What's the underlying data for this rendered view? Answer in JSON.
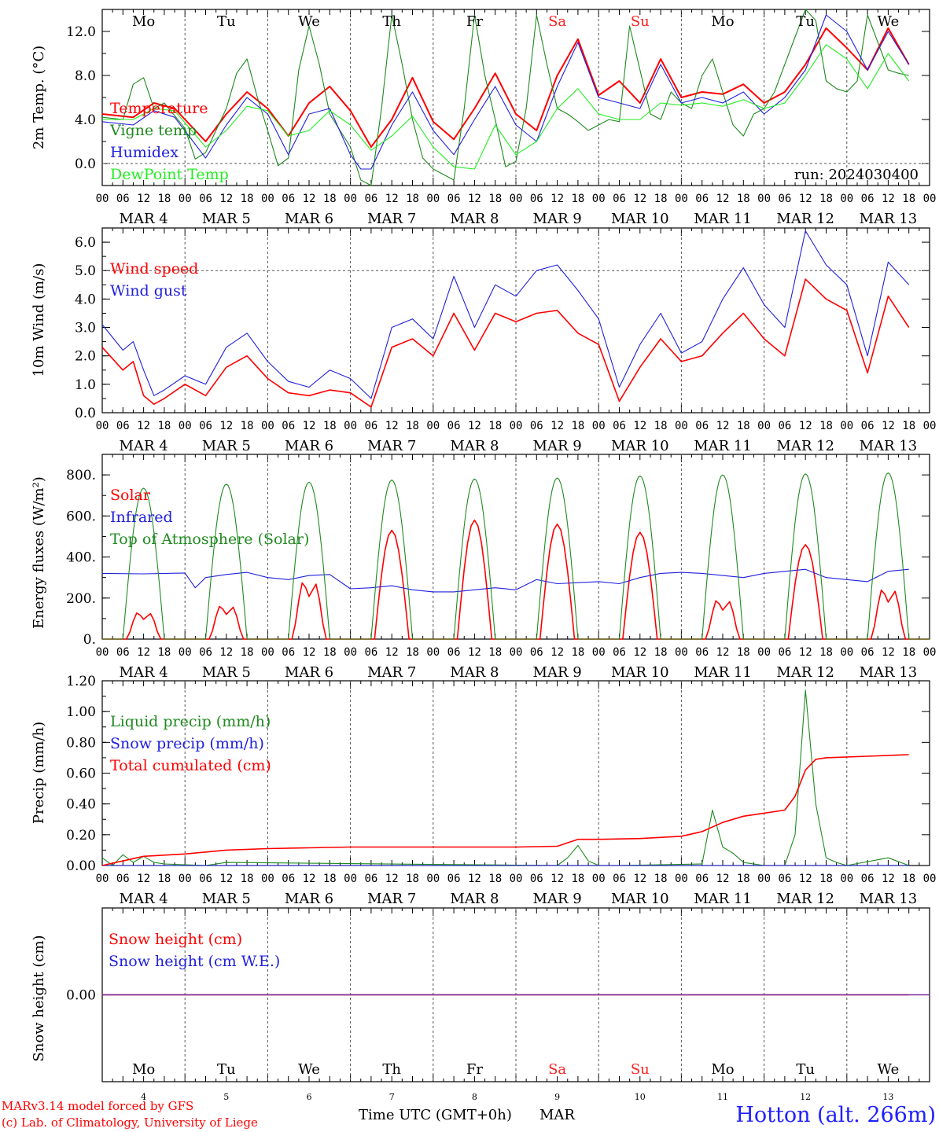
{
  "axis": {
    "hour_labels": [
      "00",
      "06",
      "12",
      "18"
    ],
    "days": [
      "Mo",
      "Tu",
      "We",
      "Th",
      "Fr",
      "Sa",
      "Su",
      "Mo",
      "Tu",
      "We"
    ],
    "weekend_color": "#ff2020",
    "dates": [
      "MAR   4",
      "MAR   5",
      "MAR   6",
      "MAR   7",
      "MAR   8",
      "MAR   9",
      "MAR  10",
      "MAR  11",
      "MAR  12",
      "MAR  13"
    ],
    "bottom_day_numbers": [
      "4",
      "5",
      "6",
      "7",
      "8",
      "9",
      "10",
      "11",
      "12",
      "13"
    ],
    "xlabel": "Time UTC (GMT+0h)",
    "month": "MAR"
  },
  "footer": {
    "credit1": "MARv3.14 model forced by GFS",
    "credit2": "(c) Lab. of Climatology, University of Liege",
    "location": "Hotton (alt. 266m)"
  },
  "chart_data": [
    {
      "type": "line",
      "ylabel": "2m Temp. (°C)",
      "ylim": [
        -2,
        14
      ],
      "yticks": [
        "0.0",
        "4.0",
        "8.0",
        "12.0"
      ],
      "run_label": "run: 2024030400",
      "series": [
        {
          "name": "Temperature",
          "color": "#ff0000",
          "x": [
            0,
            9,
            15,
            21,
            30,
            36,
            42,
            48,
            54,
            60,
            66,
            72,
            78,
            84,
            90,
            96,
            102,
            108,
            114,
            120,
            126,
            132,
            138,
            144,
            150,
            156,
            162,
            168,
            174,
            180,
            186,
            192,
            198,
            204,
            210,
            216,
            222,
            228,
            234
          ],
          "y": [
            4.5,
            4.2,
            5.5,
            5.0,
            2.0,
            4.5,
            6.5,
            5.0,
            2.5,
            5.5,
            7.0,
            4.8,
            1.5,
            4.0,
            7.8,
            3.8,
            2.2,
            5.0,
            8.2,
            4.5,
            3.0,
            8.0,
            11.3,
            6.2,
            7.5,
            5.5,
            9.5,
            6.0,
            6.5,
            6.3,
            7.2,
            5.5,
            6.5,
            9.0,
            12.3,
            10.5,
            8.5,
            12.3,
            9.0
          ]
        },
        {
          "name": "Vigne temp",
          "color": "#1f8a1f",
          "x": [
            0,
            6,
            9,
            12,
            15,
            18,
            24,
            27,
            30,
            33,
            36,
            39,
            42,
            45,
            48,
            51,
            54,
            57,
            60,
            63,
            66,
            69,
            72,
            75,
            78,
            81,
            84,
            87,
            90,
            93,
            96,
            99,
            102,
            105,
            108,
            111,
            114,
            117,
            120,
            123,
            126,
            129,
            132,
            135,
            138,
            141,
            144,
            147,
            150,
            153,
            156,
            159,
            162,
            165,
            168,
            171,
            174,
            177,
            180,
            183,
            186,
            189,
            192,
            195,
            198,
            201,
            204,
            207,
            210,
            213,
            216,
            219,
            222,
            225,
            228,
            231,
            234
          ],
          "y": [
            4.2,
            4.0,
            7.2,
            7.8,
            5.0,
            5.5,
            3.2,
            0.4,
            1.0,
            3.0,
            5.0,
            8.2,
            9.5,
            6.0,
            3.0,
            -0.2,
            0.5,
            8.5,
            12.5,
            9.0,
            4.5,
            3.0,
            1.5,
            -1.5,
            -2.0,
            5.0,
            13.5,
            9.0,
            4.0,
            0.5,
            -0.5,
            -1.0,
            -1.5,
            5.0,
            13.5,
            8.0,
            4.0,
            -0.3,
            0.2,
            5.0,
            13.5,
            9.0,
            5.0,
            4.5,
            3.8,
            3.0,
            3.5,
            4.0,
            3.8,
            12.5,
            8.5,
            4.5,
            4.0,
            6.5,
            5.5,
            5.0,
            8.0,
            9.5,
            6.5,
            3.5,
            2.5,
            4.5,
            5.0,
            6.5,
            9.0,
            11.5,
            14.0,
            13.0,
            7.5,
            6.8,
            6.5,
            7.5,
            13.5,
            11.0,
            8.5,
            8.2,
            8.0
          ]
        },
        {
          "name": "Humidex",
          "color": "#2020dd",
          "x": [
            0,
            9,
            15,
            21,
            30,
            36,
            42,
            48,
            54,
            60,
            66,
            72,
            75,
            78,
            84,
            90,
            96,
            102,
            108,
            114,
            120,
            126,
            132,
            138,
            144,
            150,
            156,
            162,
            168,
            174,
            180,
            186,
            192,
            198,
            204,
            210,
            216,
            222,
            228,
            234
          ],
          "y": [
            3.8,
            3.5,
            4.8,
            4.2,
            0.5,
            3.5,
            6.0,
            4.5,
            0.8,
            4.5,
            5.0,
            0.8,
            -0.5,
            -0.5,
            3.5,
            6.5,
            3.0,
            0.8,
            4.0,
            7.0,
            3.5,
            2.0,
            7.0,
            11.0,
            6.0,
            5.5,
            5.0,
            9.0,
            5.5,
            6.0,
            5.5,
            6.5,
            4.5,
            6.0,
            8.5,
            13.5,
            12.0,
            8.5,
            12.0,
            9.0
          ]
        },
        {
          "name": "DewPoint Temp",
          "color": "#22ee22",
          "x": [
            0,
            9,
            15,
            21,
            30,
            36,
            42,
            48,
            54,
            60,
            66,
            72,
            78,
            84,
            90,
            96,
            102,
            108,
            114,
            120,
            126,
            132,
            138,
            144,
            150,
            156,
            162,
            168,
            174,
            180,
            186,
            192,
            198,
            204,
            210,
            216,
            222,
            228,
            234
          ],
          "y": [
            4.0,
            4.0,
            5.0,
            4.8,
            1.5,
            3.0,
            5.2,
            4.8,
            2.5,
            3.0,
            4.8,
            3.5,
            1.2,
            2.5,
            4.3,
            1.5,
            -0.3,
            -0.5,
            3.5,
            0.8,
            2.0,
            5.0,
            6.8,
            4.5,
            4.0,
            4.0,
            5.5,
            5.3,
            5.5,
            5.2,
            5.8,
            5.0,
            5.5,
            8.0,
            10.8,
            9.5,
            6.8,
            10.0,
            7.5
          ]
        }
      ]
    },
    {
      "type": "line",
      "ylabel": "10m Wind (m/s)",
      "ylim": [
        0,
        6.5
      ],
      "yticks": [
        "0.0",
        "1.0",
        "2.0",
        "3.0",
        "4.0",
        "5.0",
        "6.0"
      ],
      "series": [
        {
          "name": "Wind speed",
          "color": "#ff0000",
          "x": [
            0,
            6,
            9,
            12,
            15,
            18,
            24,
            30,
            36,
            42,
            48,
            54,
            60,
            66,
            72,
            78,
            84,
            90,
            96,
            102,
            108,
            114,
            120,
            126,
            132,
            138,
            144,
            150,
            156,
            162,
            168,
            174,
            180,
            186,
            192,
            198,
            204,
            210,
            216,
            222,
            228,
            234
          ],
          "y": [
            2.3,
            1.5,
            1.8,
            0.6,
            0.3,
            0.5,
            1.0,
            0.6,
            1.6,
            2.0,
            1.2,
            0.7,
            0.6,
            0.8,
            0.7,
            0.2,
            2.3,
            2.6,
            2.0,
            3.5,
            2.2,
            3.5,
            3.2,
            3.5,
            3.6,
            2.8,
            2.4,
            0.4,
            1.6,
            2.6,
            1.8,
            2.0,
            2.8,
            3.5,
            2.6,
            2.0,
            4.7,
            4.0,
            3.6,
            1.4,
            4.1,
            3.0
          ]
        },
        {
          "name": "Wind gust",
          "color": "#2020dd",
          "x": [
            0,
            6,
            9,
            12,
            15,
            18,
            24,
            30,
            36,
            42,
            48,
            54,
            60,
            66,
            72,
            78,
            84,
            90,
            96,
            102,
            108,
            114,
            120,
            126,
            132,
            138,
            144,
            150,
            156,
            162,
            168,
            174,
            180,
            186,
            192,
            198,
            204,
            210,
            216,
            222,
            228,
            234
          ],
          "y": [
            3.1,
            2.2,
            2.5,
            1.5,
            0.6,
            0.8,
            1.3,
            1.0,
            2.3,
            2.8,
            1.8,
            1.1,
            0.9,
            1.5,
            1.2,
            0.5,
            3.0,
            3.3,
            2.6,
            4.8,
            3.0,
            4.5,
            4.1,
            5.0,
            5.2,
            4.3,
            3.3,
            0.9,
            2.4,
            3.5,
            2.1,
            2.5,
            4.0,
            5.1,
            3.8,
            3.0,
            6.4,
            5.2,
            4.5,
            2.0,
            5.3,
            4.5
          ]
        }
      ]
    },
    {
      "type": "line",
      "ylabel": "Energy fluxes (W/m²)",
      "ylim": [
        0,
        900
      ],
      "yticks": [
        "0.",
        "200.",
        "400.",
        "600.",
        "800."
      ],
      "series": [
        {
          "name": "Solar",
          "color": "#ff0000",
          "peaks_W_m2": [
            160,
            200,
            345,
            530,
            580,
            560,
            520,
            235,
            460,
            300
          ]
        },
        {
          "name": "Infrared",
          "color": "#2020dd",
          "x": [
            0,
            12,
            24,
            27,
            30,
            36,
            42,
            48,
            54,
            60,
            66,
            72,
            78,
            84,
            90,
            96,
            102,
            108,
            114,
            120,
            126,
            132,
            138,
            144,
            150,
            156,
            162,
            168,
            174,
            180,
            186,
            192,
            198,
            204,
            210,
            216,
            222,
            228,
            234
          ],
          "y": [
            320,
            318,
            322,
            250,
            300,
            315,
            325,
            300,
            290,
            310,
            315,
            245,
            250,
            260,
            240,
            230,
            230,
            240,
            250,
            240,
            290,
            270,
            275,
            280,
            270,
            300,
            320,
            325,
            320,
            310,
            300,
            320,
            330,
            340,
            300,
            290,
            280,
            330,
            340
          ]
        },
        {
          "name": "Top of Atmosphere (Solar)",
          "color": "#1f8a1f",
          "peaks_W_m2": [
            735,
            755,
            765,
            775,
            780,
            785,
            795,
            800,
            805,
            810
          ]
        }
      ]
    },
    {
      "type": "line",
      "ylabel": "Precip (mm/h)",
      "ylim": [
        0,
        1.2
      ],
      "yticks": [
        "0.00",
        "0.20",
        "0.40",
        "0.60",
        "0.80",
        "1.00",
        "1.20"
      ],
      "series": [
        {
          "name": "Liquid precip (mm/h)",
          "color": "#1f8a1f",
          "x": [
            0,
            3,
            6,
            9,
            12,
            15,
            18,
            30,
            36,
            132,
            135,
            138,
            141,
            144,
            150,
            174,
            177,
            180,
            183,
            186,
            192,
            198,
            201,
            204,
            207,
            210,
            213,
            216,
            228,
            234
          ],
          "y": [
            0.05,
            0.0,
            0.07,
            0.02,
            0.06,
            0.02,
            0.01,
            0.0,
            0.02,
            0.0,
            0.05,
            0.13,
            0.03,
            0.0,
            0.0,
            0.01,
            0.36,
            0.12,
            0.08,
            0.02,
            0.0,
            0.0,
            0.2,
            1.14,
            0.4,
            0.05,
            0.02,
            0.0,
            0.05,
            0.0
          ]
        },
        {
          "name": "Snow precip (mm/h)",
          "color": "#2020dd",
          "x": [
            0,
            234
          ],
          "y": [
            0,
            0
          ]
        },
        {
          "name": "Total cumulated (cm)",
          "color": "#ff0000",
          "x": [
            0,
            12,
            24,
            36,
            48,
            60,
            72,
            96,
            120,
            132,
            138,
            144,
            156,
            168,
            174,
            180,
            186,
            192,
            198,
            201,
            204,
            207,
            210,
            222,
            234
          ],
          "y": [
            0.0,
            0.06,
            0.075,
            0.1,
            0.11,
            0.115,
            0.12,
            0.12,
            0.12,
            0.125,
            0.17,
            0.17,
            0.175,
            0.19,
            0.22,
            0.28,
            0.32,
            0.34,
            0.36,
            0.45,
            0.62,
            0.69,
            0.7,
            0.71,
            0.72
          ]
        }
      ]
    },
    {
      "type": "line",
      "ylabel": "Snow height (cm)",
      "yticks": [
        "0.00"
      ],
      "series": [
        {
          "name": "Snow height (cm)",
          "color": "#ff0000",
          "x": [
            0,
            234
          ],
          "y": [
            0,
            0
          ]
        },
        {
          "name": "Snow height (cm W.E.)",
          "color": "#2020dd",
          "x": [
            0,
            234
          ],
          "y": [
            0,
            0
          ]
        }
      ]
    }
  ]
}
